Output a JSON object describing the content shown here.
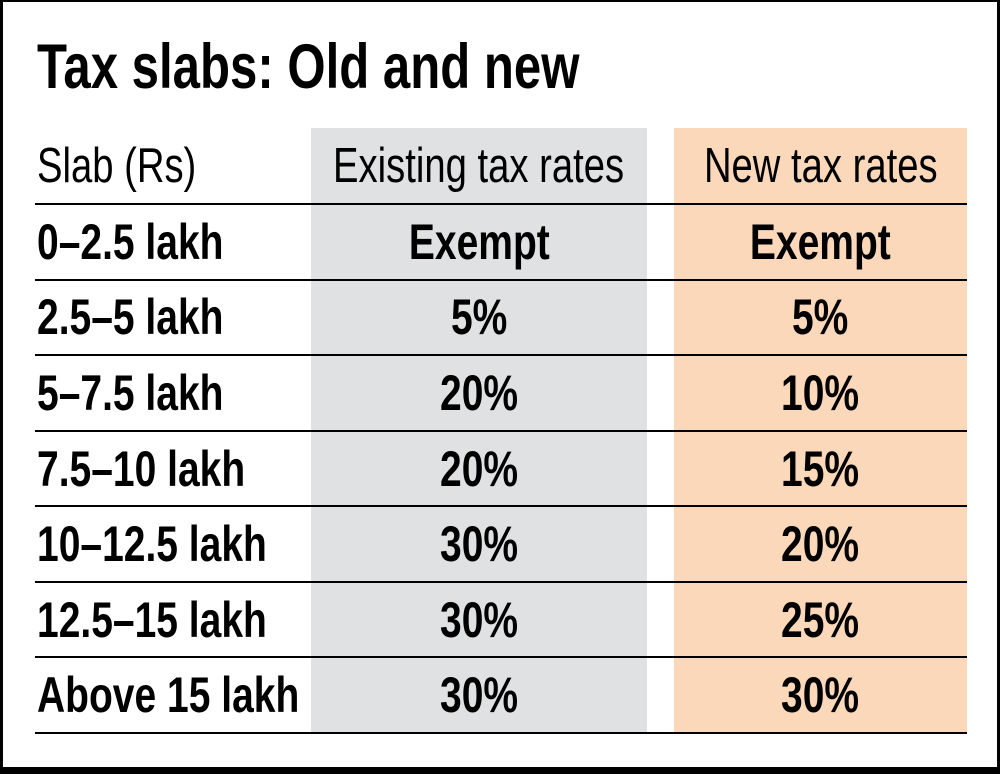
{
  "title": "Tax slabs: Old and new",
  "colors": {
    "existing_column_bg": "#e0e1e3",
    "new_column_bg": "#fcd8bb",
    "rule_line": "#000000",
    "text": "#000000",
    "frame": "#000000"
  },
  "chart_data": {
    "type": "table",
    "title": "Tax slabs: Old and new",
    "columns": [
      "Slab (Rs)",
      "Existing tax rates",
      "New tax rates"
    ],
    "rows": [
      {
        "slab": "0–2.5 lakh",
        "existing": "Exempt",
        "new": "Exempt"
      },
      {
        "slab": "2.5–5 lakh",
        "existing": "5%",
        "new": "5%"
      },
      {
        "slab": "5–7.5 lakh",
        "existing": "20%",
        "new": "10%"
      },
      {
        "slab": "7.5–10 lakh",
        "existing": "20%",
        "new": "15%"
      },
      {
        "slab": "10–12.5 lakh",
        "existing": "30%",
        "new": "20%"
      },
      {
        "slab": "12.5–15 lakh",
        "existing": "30%",
        "new": "25%"
      },
      {
        "slab": "Above 15 lakh",
        "existing": "30%",
        "new": "30%"
      }
    ],
    "layout": {
      "legend": "none",
      "grid": "horizontal-rules-only",
      "highlight": "new-rates-column-shaded-peach, existing-rates-column-shaded-gray"
    }
  }
}
